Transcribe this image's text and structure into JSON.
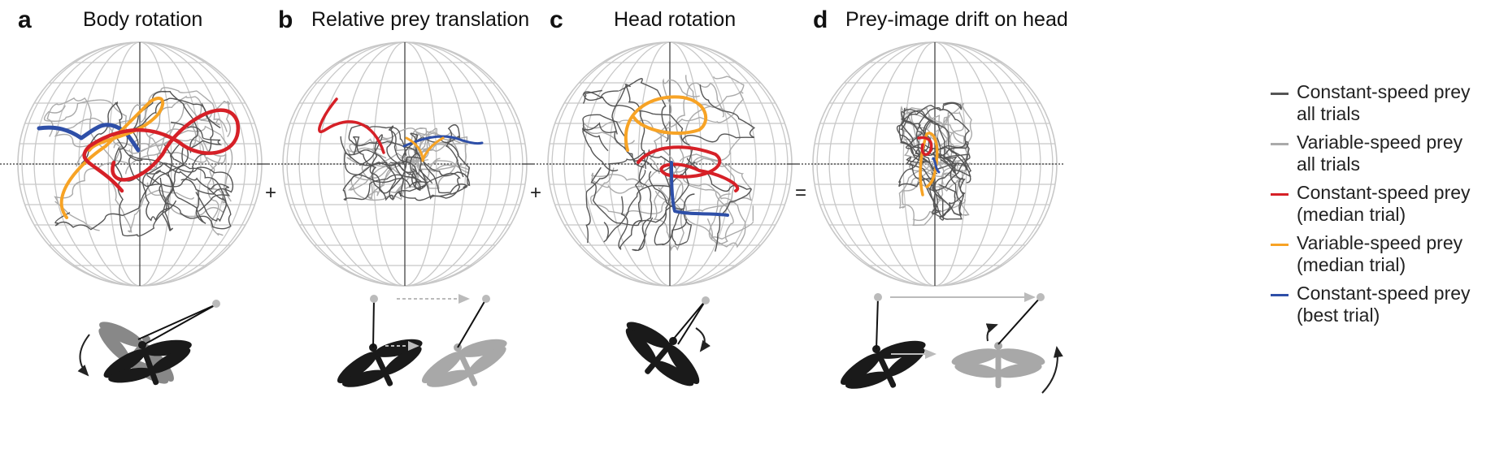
{
  "panels": [
    {
      "letter": "a",
      "title": "Body rotation"
    },
    {
      "letter": "b",
      "title": "Relative prey translation"
    },
    {
      "letter": "c",
      "title": "Head rotation"
    },
    {
      "letter": "d",
      "title": "Prey-image drift on head"
    }
  ],
  "operators": [
    "+",
    "+",
    "="
  ],
  "legend": [
    {
      "label": "Constant-speed prey\nall trials",
      "color": "#555555"
    },
    {
      "label": "Variable-speed prey\nall trials",
      "color": "#aaaaaa"
    },
    {
      "label": "Constant-speed prey\n(median trial)",
      "color": "#d62027"
    },
    {
      "label": "Variable-speed prey\n(median trial)",
      "color": "#f7a325"
    },
    {
      "label": "Constant-speed prey\n(best trial)",
      "color": "#2e4fa8"
    }
  ],
  "colors": {
    "grid": "#c8c8c8",
    "axis": "#555555",
    "constant_all": "#555555",
    "variable_all": "#aaaaaa",
    "constant_median": "#d62027",
    "variable_median": "#f7a325",
    "constant_best": "#2e4fa8",
    "insect_dark": "#1a1a1a",
    "insect_light": "#a8a8a8"
  },
  "icons": {
    "a": [
      "dragonfly-icon",
      "curved-arrow-icon"
    ],
    "b": [
      "dragonfly-icon",
      "dashed-arrow-icon"
    ],
    "c": [
      "dragonfly-icon",
      "curved-arrow-icon"
    ],
    "d": [
      "dragonfly-icon",
      "straight-arrow-icon",
      "curved-arrow-icon"
    ]
  }
}
